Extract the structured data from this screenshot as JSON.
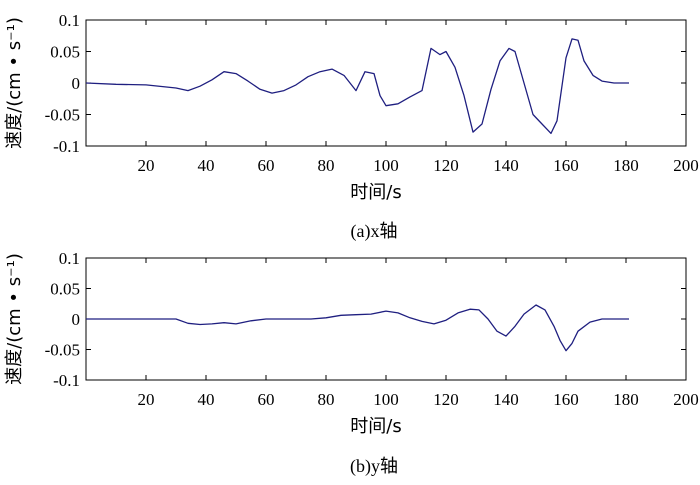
{
  "chart_data": [
    {
      "type": "line",
      "caption": "(a)x轴",
      "xlabel": "时间/s",
      "ylabel": "速度/(cm • s⁻¹)",
      "xlim": [
        0,
        200
      ],
      "ylim": [
        -0.1,
        0.1
      ],
      "xticks": [
        "20",
        "40",
        "60",
        "80",
        "100",
        "120",
        "140",
        "160",
        "180",
        "200"
      ],
      "yticks": [
        "0.1",
        "0.05",
        "0",
        "-0.05",
        "-0.1"
      ],
      "grid": false,
      "color": "#1f1f80",
      "x": [
        0,
        10,
        20,
        30,
        34,
        38,
        42,
        46,
        50,
        54,
        58,
        62,
        66,
        70,
        74,
        78,
        82,
        86,
        90,
        93,
        96,
        98,
        100,
        104,
        108,
        112,
        115,
        118,
        120,
        123,
        126,
        129,
        132,
        135,
        138,
        141,
        143,
        146,
        149,
        152,
        155,
        157,
        160,
        162,
        164,
        166,
        169,
        172,
        176,
        181
      ],
      "values": [
        0,
        -0.002,
        -0.003,
        -0.008,
        -0.012,
        -0.005,
        0.005,
        0.018,
        0.015,
        0.003,
        -0.01,
        -0.016,
        -0.012,
        -0.003,
        0.01,
        0.018,
        0.022,
        0.012,
        -0.012,
        0.018,
        0.015,
        -0.02,
        -0.036,
        -0.033,
        -0.022,
        -0.012,
        0.055,
        0.045,
        0.05,
        0.025,
        -0.02,
        -0.078,
        -0.065,
        -0.01,
        0.035,
        0.055,
        0.05,
        0.0,
        -0.05,
        -0.065,
        -0.08,
        -0.06,
        0.04,
        0.07,
        0.068,
        0.035,
        0.012,
        0.003,
        0.0,
        0.0
      ]
    },
    {
      "type": "line",
      "caption": "(b)y轴",
      "xlabel": "时间/s",
      "ylabel": "速度/(cm • s⁻¹)",
      "xlim": [
        0,
        200
      ],
      "ylim": [
        -0.1,
        0.1
      ],
      "xticks": [
        "20",
        "40",
        "60",
        "80",
        "100",
        "120",
        "140",
        "160",
        "180",
        "200"
      ],
      "yticks": [
        "0.1",
        "0.05",
        "0",
        "-0.05",
        "-0.1"
      ],
      "grid": false,
      "color": "#1f1f80",
      "x": [
        0,
        30,
        34,
        38,
        42,
        46,
        50,
        55,
        60,
        65,
        70,
        75,
        80,
        85,
        90,
        95,
        100,
        104,
        108,
        112,
        116,
        120,
        124,
        128,
        131,
        134,
        137,
        140,
        143,
        146,
        150,
        153,
        156,
        158,
        160,
        162,
        164,
        168,
        172,
        176,
        181
      ],
      "values": [
        0,
        0,
        -0.007,
        -0.009,
        -0.008,
        -0.006,
        -0.008,
        -0.003,
        0,
        0,
        0,
        0,
        0.002,
        0.006,
        0.007,
        0.008,
        0.013,
        0.01,
        0.002,
        -0.004,
        -0.008,
        -0.002,
        0.01,
        0.016,
        0.015,
        0.0,
        -0.02,
        -0.028,
        -0.012,
        0.008,
        0.023,
        0.015,
        -0.012,
        -0.035,
        -0.052,
        -0.04,
        -0.02,
        -0.005,
        0,
        0,
        0
      ]
    }
  ]
}
